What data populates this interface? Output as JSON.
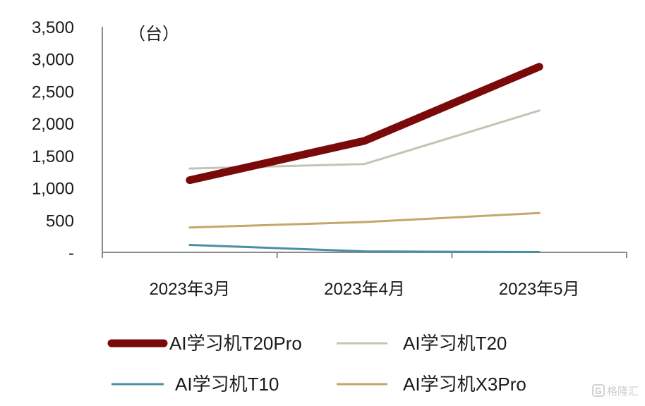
{
  "chart_data": {
    "type": "line",
    "title": "",
    "unit_label": "（台）",
    "xlabel": "",
    "ylabel": "",
    "categories": [
      "2023年3月",
      "2023年4月",
      "2023年5月"
    ],
    "ylim": [
      0,
      3500
    ],
    "yticks": [
      0,
      500,
      1000,
      1500,
      2000,
      2500,
      3000,
      3500
    ],
    "ytick_labels": [
      "-",
      "500",
      "1,000",
      "1,500",
      "2,000",
      "2,500",
      "3,000",
      "3,500"
    ],
    "grid": false,
    "legend_position": "bottom",
    "series": [
      {
        "name": "AI学习机T20Pro",
        "color": "#7a0a0a",
        "weight": "heavy",
        "values": [
          1120,
          1730,
          2880
        ]
      },
      {
        "name": "AI学习机T20",
        "color": "#c4c4b4",
        "weight": "normal",
        "values": [
          1300,
          1370,
          2200
        ]
      },
      {
        "name": "AI学习机T10",
        "color": "#4a8fa3",
        "weight": "normal",
        "values": [
          115,
          15,
          5
        ]
      },
      {
        "name": "AI学习机X3Pro",
        "color": "#c2a86a",
        "weight": "normal",
        "values": [
          385,
          470,
          610
        ]
      }
    ]
  },
  "watermark": {
    "icon": "gelonghui-logo-icon",
    "text": "格隆汇"
  }
}
